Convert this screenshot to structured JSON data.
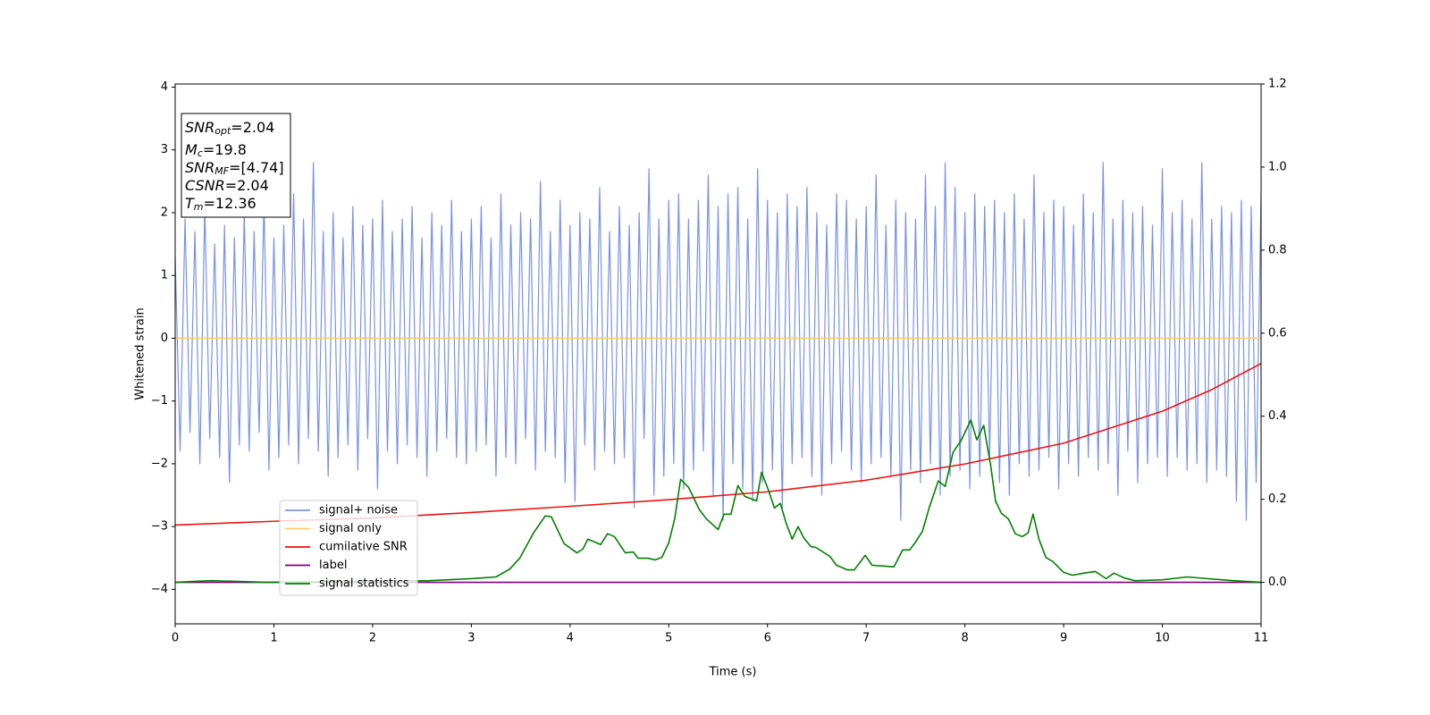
{
  "chart_data": {
    "type": "line",
    "xlabel": "Time (s)",
    "ylabel": "Whitened strain",
    "xlim": [
      0,
      11
    ],
    "xticks": [
      0,
      1,
      2,
      3,
      4,
      5,
      6,
      7,
      8,
      9,
      10,
      11
    ],
    "ylim": [
      -4.55,
      4.05
    ],
    "yticks": [
      {
        "value": -4,
        "label": "−4"
      },
      {
        "value": -3,
        "label": "−3"
      },
      {
        "value": -2,
        "label": "−2"
      },
      {
        "value": -1,
        "label": "−1"
      },
      0,
      1,
      2,
      3,
      4
    ],
    "y2lim": [
      -0.1,
      1.2
    ],
    "y2ticks": [
      {
        "value": 0,
        "label": "0.0"
      },
      0.2,
      0.4,
      0.6,
      0.8,
      {
        "value": 1,
        "label": "1.0"
      },
      1.2
    ],
    "legend": "lower left",
    "annotation": [
      {
        "main": "SNR",
        "sub": "opt",
        "rest": "=2.04"
      },
      {
        "main": "M",
        "sub": "c",
        "rest": "=19.8"
      },
      {
        "main": "SNR",
        "sub": "MF",
        "rest": "=[4.74]"
      },
      {
        "main": "CSNR",
        "sub": "",
        "rest": "=2.04"
      },
      {
        "main": "T",
        "sub": "m",
        "rest": "=12.36"
      }
    ],
    "series": [
      {
        "name": "signal+ noise",
        "color": "#7893e6",
        "x": [
          0,
          0.05,
          0.1,
          0.15,
          0.2,
          0.25,
          0.3,
          0.35,
          0.4,
          0.45,
          0.5,
          0.55,
          0.6,
          0.65,
          0.7,
          0.75,
          0.8,
          0.85,
          0.9,
          0.95,
          1,
          1.05,
          1.1,
          1.15,
          1.2,
          1.25,
          1.3,
          1.35,
          1.4,
          1.45,
          1.5,
          1.55,
          1.6,
          1.65,
          1.7,
          1.75,
          1.8,
          1.85,
          1.9,
          1.95,
          2,
          2.05,
          2.1,
          2.15,
          2.2,
          2.25,
          2.3,
          2.35,
          2.4,
          2.45,
          2.5,
          2.55,
          2.6,
          2.65,
          2.7,
          2.75,
          2.8,
          2.85,
          2.9,
          2.95,
          3,
          3.05,
          3.1,
          3.15,
          3.2,
          3.25,
          3.3,
          3.35,
          3.4,
          3.45,
          3.5,
          3.55,
          3.6,
          3.65,
          3.7,
          3.75,
          3.8,
          3.85,
          3.9,
          3.95,
          4,
          4.05,
          4.1,
          4.15,
          4.2,
          4.25,
          4.3,
          4.35,
          4.4,
          4.45,
          4.5,
          4.55,
          4.6,
          4.65,
          4.7,
          4.75,
          4.8,
          4.85,
          4.9,
          4.95,
          5,
          5.05,
          5.1,
          5.15,
          5.2,
          5.25,
          5.3,
          5.35,
          5.4,
          5.45,
          5.5,
          5.55,
          5.6,
          5.65,
          5.7,
          5.75,
          5.8,
          5.85,
          5.9,
          5.95,
          6,
          6.05,
          6.1,
          6.15,
          6.2,
          6.25,
          6.3,
          6.35,
          6.4,
          6.45,
          6.5,
          6.55,
          6.6,
          6.65,
          6.7,
          6.75,
          6.8,
          6.85,
          6.9,
          6.95,
          7,
          7.05,
          7.1,
          7.15,
          7.2,
          7.25,
          7.3,
          7.35,
          7.4,
          7.45,
          7.5,
          7.55,
          7.6,
          7.65,
          7.7,
          7.75,
          7.8,
          7.85,
          7.9,
          7.95,
          8,
          8.05,
          8.1,
          8.15,
          8.2,
          8.25,
          8.3,
          8.35,
          8.4,
          8.45,
          8.5,
          8.55,
          8.6,
          8.65,
          8.7,
          8.75,
          8.8,
          8.85,
          8.9,
          8.95,
          9,
          9.05,
          9.1,
          9.15,
          9.2,
          9.25,
          9.3,
          9.35,
          9.4,
          9.45,
          9.5,
          9.55,
          9.6,
          9.65,
          9.7,
          9.75,
          9.8,
          9.85,
          9.9,
          9.95,
          10,
          10.05,
          10.1,
          10.15,
          10.2,
          10.25,
          10.3,
          10.35,
          10.4,
          10.45,
          10.5,
          10.55,
          10.6,
          10.65,
          10.7,
          10.75,
          10.8,
          10.85,
          10.9,
          10.95,
          11
        ],
        "values": [
          1.3,
          -1.8,
          1.9,
          -1.5,
          1.7,
          -2.0,
          2.1,
          -1.6,
          1.5,
          -1.9,
          1.8,
          -2.3,
          1.6,
          -1.7,
          2.0,
          -1.8,
          1.7,
          -1.5,
          2.2,
          -2.1,
          1.6,
          -1.9,
          1.8,
          -1.7,
          2.3,
          -2.0,
          1.9,
          -1.6,
          2.8,
          -1.8,
          1.7,
          -2.2,
          2.0,
          -1.9,
          1.6,
          -1.7,
          2.1,
          -2.1,
          1.8,
          -1.6,
          1.9,
          -2.4,
          2.2,
          -1.8,
          1.7,
          -2.0,
          1.9,
          -1.7,
          2.1,
          -1.9,
          1.6,
          -2.2,
          2.0,
          -1.8,
          1.8,
          -1.6,
          2.2,
          -1.9,
          1.7,
          -2.0,
          1.9,
          -1.8,
          2.1,
          -1.7,
          1.6,
          -2.2,
          2.3,
          -1.9,
          1.8,
          -2.0,
          2.0,
          -1.6,
          1.9,
          -2.1,
          2.5,
          -1.8,
          1.7,
          -1.9,
          2.2,
          -2.3,
          1.8,
          -2.6,
          2.0,
          -1.7,
          1.9,
          -2.1,
          2.4,
          -1.8,
          1.7,
          -2.0,
          2.1,
          -1.9,
          1.8,
          -2.7,
          2.0,
          -1.6,
          2.7,
          -2.5,
          1.9,
          -2.2,
          2.2,
          -2.0,
          2.3,
          -2.4,
          1.9,
          -2.1,
          2.2,
          -1.8,
          2.6,
          -2.5,
          2.1,
          -2.9,
          2.3,
          -2.0,
          2.4,
          -2.4,
          1.9,
          -2.6,
          2.7,
          -2.3,
          2.2,
          -2.1,
          2.0,
          -2.7,
          2.3,
          -2.0,
          2.1,
          -1.9,
          2.4,
          -2.2,
          2.0,
          -2.5,
          1.8,
          -2.0,
          2.3,
          -1.8,
          2.2,
          -2.1,
          1.9,
          -2.3,
          2.1,
          -2.0,
          2.6,
          -1.9,
          1.8,
          -2.2,
          2.2,
          -2.9,
          2.0,
          -2.1,
          1.9,
          -2.3,
          2.6,
          -2.0,
          2.1,
          -2.5,
          2.8,
          -2.2,
          2.4,
          -2.1,
          2.0,
          -2.4,
          2.3,
          -2.2,
          2.1,
          -1.9,
          2.2,
          -2.3,
          2.0,
          -2.5,
          2.3,
          -2.0,
          1.9,
          -2.2,
          2.6,
          -2.1,
          2.0,
          -1.9,
          2.2,
          -2.4,
          2.1,
          -2.0,
          1.8,
          -2.2,
          2.3,
          -1.9,
          2.0,
          -2.1,
          2.8,
          -2.0,
          1.9,
          -2.5,
          2.2,
          -1.8,
          2.0,
          -2.3,
          2.1,
          -2.0,
          1.8,
          -1.9,
          2.7,
          -2.2,
          2.0,
          -1.9,
          2.2,
          -2.1,
          1.9,
          -2.0,
          2.8,
          -2.3,
          1.9,
          -2.1,
          2.1,
          -2.2,
          2.0,
          -2.6,
          2.2,
          -2.9,
          2.1,
          -2.3,
          2.3
        ]
      },
      {
        "name": "signal only",
        "color": "#ffc870",
        "x": [
          0,
          11
        ],
        "values": [
          0,
          0
        ]
      },
      {
        "name": "cumilative SNR",
        "color": "#ee1111",
        "axis": "y2",
        "x": [
          0,
          1,
          2,
          3,
          4,
          5,
          6,
          7,
          8,
          9,
          10,
          10.5,
          11
        ],
        "values": [
          0.138,
          0.147,
          0.155,
          0.168,
          0.183,
          0.199,
          0.218,
          0.246,
          0.285,
          0.335,
          0.412,
          0.464,
          0.527
        ]
      },
      {
        "name": "label",
        "color": "#800080",
        "axis": "y2",
        "x": [
          0,
          11
        ],
        "values": [
          0,
          0
        ]
      },
      {
        "name": "signal statistics",
        "color": "#008000",
        "axis": "y2",
        "x": [
          0,
          0.36,
          0.94,
          2.57,
          3.02,
          3.25,
          3.39,
          3.49,
          3.63,
          3.75,
          3.81,
          3.94,
          4.07,
          4.13,
          4.18,
          4.31,
          4.38,
          4.45,
          4.56,
          4.64,
          4.69,
          4.79,
          4.86,
          4.93,
          5.0,
          5.06,
          5.12,
          5.2,
          5.31,
          5.38,
          5.5,
          5.56,
          5.63,
          5.7,
          5.77,
          5.89,
          5.94,
          6.01,
          6.07,
          6.13,
          6.19,
          6.25,
          6.31,
          6.37,
          6.44,
          6.49,
          6.63,
          6.7,
          6.81,
          6.88,
          6.99,
          7.06,
          7.19,
          7.28,
          7.37,
          7.44,
          7.5,
          7.57,
          7.64,
          7.73,
          7.8,
          7.88,
          7.96,
          8.06,
          8.12,
          8.19,
          8.26,
          8.31,
          8.37,
          8.44,
          8.51,
          8.58,
          8.64,
          8.69,
          8.75,
          8.82,
          8.89,
          9.0,
          9.09,
          9.2,
          9.32,
          9.43,
          9.51,
          9.61,
          9.72,
          10.0,
          10.25,
          10.45,
          10.72,
          11
        ],
        "values": [
          0,
          0.004,
          0,
          0.004,
          0.009,
          0.013,
          0.032,
          0.058,
          0.119,
          0.16,
          0.158,
          0.093,
          0.071,
          0.08,
          0.104,
          0.091,
          0.117,
          0.11,
          0.071,
          0.073,
          0.058,
          0.058,
          0.054,
          0.06,
          0.095,
          0.153,
          0.248,
          0.229,
          0.175,
          0.153,
          0.127,
          0.164,
          0.164,
          0.233,
          0.207,
          0.196,
          0.265,
          0.222,
          0.179,
          0.19,
          0.142,
          0.104,
          0.134,
          0.106,
          0.086,
          0.084,
          0.063,
          0.041,
          0.03,
          0.03,
          0.065,
          0.041,
          0.039,
          0.037,
          0.078,
          0.078,
          0.097,
          0.123,
          0.181,
          0.244,
          0.231,
          0.313,
          0.341,
          0.391,
          0.343,
          0.378,
          0.283,
          0.196,
          0.166,
          0.153,
          0.117,
          0.11,
          0.119,
          0.164,
          0.104,
          0.06,
          0.05,
          0.024,
          0.017,
          0.022,
          0.026,
          0.009,
          0.022,
          0.011,
          0.004,
          0.006,
          0.013,
          0.009,
          0.004,
          0
        ]
      }
    ]
  }
}
